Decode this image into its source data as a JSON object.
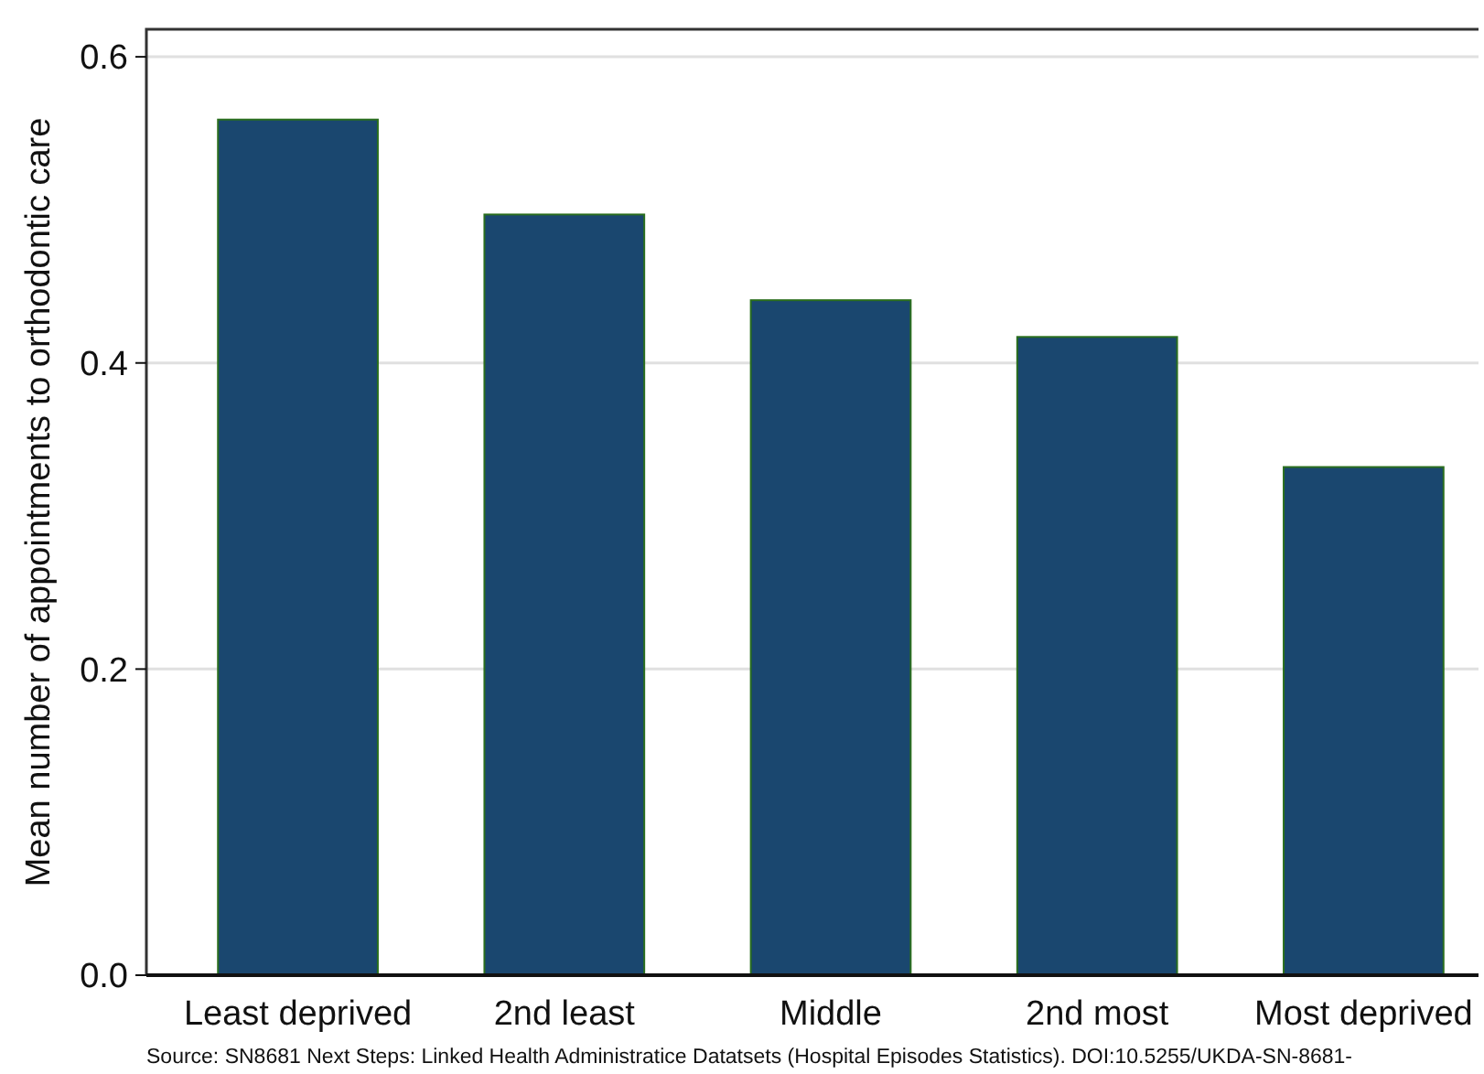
{
  "chart_data": {
    "type": "bar",
    "ylabel": "Mean number of appointments to orthodontic care",
    "categories": [
      "Least deprived",
      "2nd least",
      "Middle",
      "2nd most",
      "Most deprived"
    ],
    "values": [
      0.559,
      0.497,
      0.441,
      0.417,
      0.332
    ],
    "color": "#1a476f",
    "ylim": [
      0,
      0.618
    ],
    "yticks": [
      {
        "value": 0,
        "label": "0.0"
      },
      {
        "value": 0.2,
        "label": "0.2"
      },
      {
        "value": 0.4,
        "label": "0.4"
      },
      {
        "value": 0.6,
        "label": "0.6"
      }
    ],
    "grid": "y",
    "annotations": [
      "Source: SN8681 Next Steps: Linked Health Administratice Datatsets (Hospital Episodes Statistics). DOI:10.5255/UKDA-SN-8681-"
    ]
  }
}
